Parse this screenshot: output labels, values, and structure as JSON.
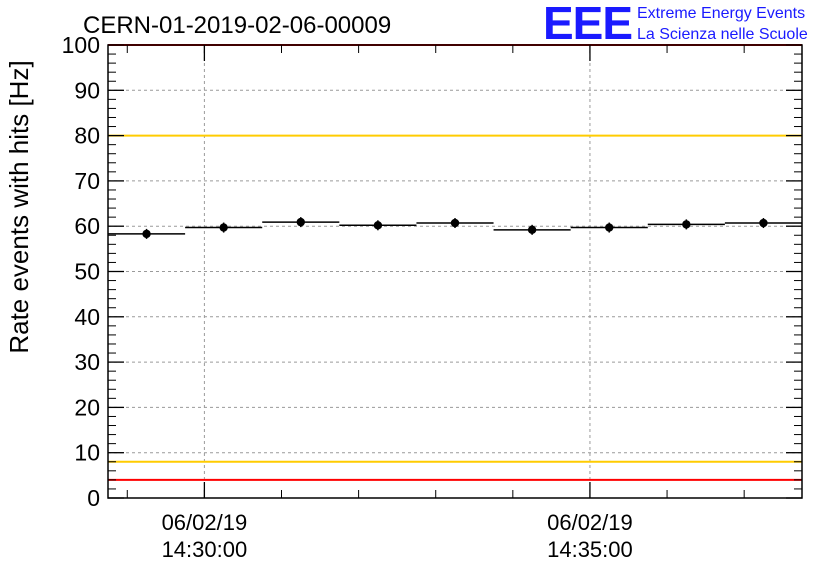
{
  "chart_data": {
    "type": "scatter",
    "title": "CERN-01-2019-02-06-00009",
    "ylabel": "Rate events with hits [Hz]",
    "xlabel": "",
    "ylim": [
      0,
      100
    ],
    "y_ticks": [
      "0",
      "10",
      "20",
      "30",
      "40",
      "50",
      "60",
      "70",
      "80",
      "90",
      "100"
    ],
    "x_ticks": [
      {
        "date": "06/02/19",
        "time": "14:30:00"
      },
      {
        "date": "06/02/19",
        "time": "14:35:00"
      }
    ],
    "x_range": [
      "14:28:45",
      "14:37:45"
    ],
    "grid": true,
    "points": [
      {
        "x_start": "14:28:45",
        "x_end": "14:29:45",
        "y": 58.3
      },
      {
        "x_start": "14:29:45",
        "x_end": "14:30:45",
        "y": 59.7
      },
      {
        "x_start": "14:30:45",
        "x_end": "14:31:45",
        "y": 60.9
      },
      {
        "x_start": "14:31:45",
        "x_end": "14:32:45",
        "y": 60.2
      },
      {
        "x_start": "14:32:45",
        "x_end": "14:33:45",
        "y": 60.7
      },
      {
        "x_start": "14:33:45",
        "x_end": "14:34:45",
        "y": 59.2
      },
      {
        "x_start": "14:34:45",
        "x_end": "14:35:45",
        "y": 59.7
      },
      {
        "x_start": "14:35:45",
        "x_end": "14:36:45",
        "y": 60.4
      },
      {
        "x_start": "14:36:45",
        "x_end": "14:37:45",
        "y": 60.7
      }
    ],
    "reference_lines": [
      {
        "y": 100,
        "color": "#ff0000"
      },
      {
        "y": 80,
        "color": "#ffcc00"
      },
      {
        "y": 8,
        "color": "#ffcc00"
      },
      {
        "y": 4,
        "color": "#ff0000"
      }
    ]
  },
  "logo": {
    "mark": "EEE",
    "line1": "Extreme Energy Events",
    "line2": "La Scienza nelle Scuole",
    "color": "#1a1aff"
  }
}
